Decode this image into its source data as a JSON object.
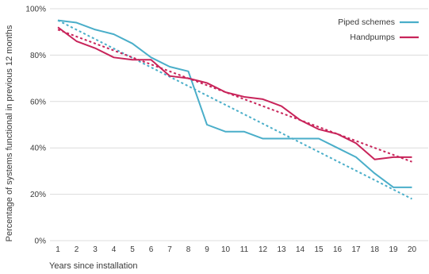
{
  "chart_data": {
    "type": "line",
    "xlabel": "Years since installation",
    "ylabel": "Percentage of systems functional in previous 12 months",
    "x": [
      1,
      2,
      3,
      4,
      5,
      6,
      7,
      8,
      9,
      10,
      11,
      12,
      13,
      14,
      15,
      16,
      17,
      18,
      19,
      20
    ],
    "ylim": [
      0,
      100
    ],
    "yticks": [
      0,
      20,
      40,
      60,
      80,
      100
    ],
    "ytick_labels": [
      "0%",
      "20%",
      "40%",
      "60%",
      "80%",
      "100%"
    ],
    "grid": true,
    "legend_position": "top-right",
    "series": [
      {
        "name": "Piped schemes",
        "color": "#4aaec9",
        "values": [
          95,
          94,
          91,
          89,
          85,
          79,
          75,
          73,
          50,
          47,
          47,
          44,
          44,
          44,
          44,
          40,
          36,
          29,
          23,
          23
        ],
        "trend": [
          95,
          18
        ]
      },
      {
        "name": "Handpumps",
        "color": "#c8245a",
        "values": [
          92,
          86,
          83,
          79,
          78,
          78,
          71,
          70,
          68,
          64,
          62,
          61,
          58,
          52,
          48,
          46,
          42,
          35,
          36,
          36
        ],
        "trend": [
          91,
          34
        ]
      }
    ]
  }
}
